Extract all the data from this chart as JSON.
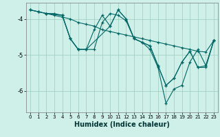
{
  "xlabel": "Humidex (Indice chaleur)",
  "bg_color": "#cff0e8",
  "line_color": "#006666",
  "grid_color": "#99ccbb",
  "xlim": [
    -0.5,
    23.5
  ],
  "ylim": [
    -6.6,
    -3.55
  ],
  "yticks": [
    -6,
    -5,
    -4
  ],
  "xticks": [
    0,
    1,
    2,
    3,
    4,
    5,
    6,
    7,
    8,
    9,
    10,
    11,
    12,
    13,
    14,
    15,
    16,
    17,
    18,
    19,
    20,
    21,
    22,
    23
  ],
  "lines": [
    {
      "x": [
        0,
        1,
        2,
        3,
        4,
        5,
        6,
        7,
        8,
        9,
        10,
        11,
        12,
        13,
        14,
        15,
        16,
        17,
        18,
        19,
        20,
        21,
        22,
        23
      ],
      "y": [
        -3.75,
        -3.8,
        -3.85,
        -3.9,
        -3.95,
        -4.0,
        -4.1,
        -4.15,
        -4.2,
        -4.3,
        -4.35,
        -4.4,
        -4.45,
        -4.5,
        -4.55,
        -4.6,
        -4.65,
        -4.7,
        -4.75,
        -4.8,
        -4.85,
        -4.9,
        -4.92,
        -4.6
      ]
    },
    {
      "x": [
        0,
        1,
        2,
        4,
        5,
        6,
        7,
        8,
        9,
        10,
        11,
        12,
        13,
        14,
        15,
        16,
        17,
        18,
        19,
        20,
        21,
        22,
        23
      ],
      "y": [
        -3.75,
        -3.8,
        -3.85,
        -3.9,
        -4.55,
        -4.85,
        -4.85,
        -4.85,
        -4.1,
        -3.85,
        -3.9,
        -4.05,
        -4.55,
        -4.65,
        -4.85,
        -5.35,
        -6.35,
        -5.95,
        -5.85,
        -5.2,
        -4.85,
        -5.3,
        -4.6
      ]
    },
    {
      "x": [
        0,
        1,
        2,
        3,
        4,
        5,
        6,
        7,
        8,
        9,
        10,
        11,
        12,
        13,
        14,
        15,
        16,
        17,
        18,
        19,
        20,
        21,
        22,
        23
      ],
      "y": [
        -3.75,
        -3.8,
        -3.85,
        -3.85,
        -3.9,
        -4.55,
        -4.85,
        -4.85,
        -4.3,
        -3.9,
        -4.2,
        -3.75,
        -4.0,
        -4.55,
        -4.65,
        -4.75,
        -5.3,
        -5.85,
        -5.65,
        -5.2,
        -4.9,
        -5.35,
        -5.35,
        -4.6
      ]
    },
    {
      "x": [
        2,
        4,
        5,
        6,
        7,
        10,
        11,
        12,
        13,
        14,
        15,
        16,
        17,
        18,
        19,
        20,
        21,
        22,
        23
      ],
      "y": [
        -3.85,
        -3.9,
        -4.55,
        -4.85,
        -4.85,
        -4.2,
        -3.75,
        -4.0,
        -4.55,
        -4.65,
        -4.75,
        -5.3,
        -5.85,
        -5.65,
        -5.2,
        -4.9,
        -5.35,
        -5.3,
        -4.6
      ]
    }
  ]
}
